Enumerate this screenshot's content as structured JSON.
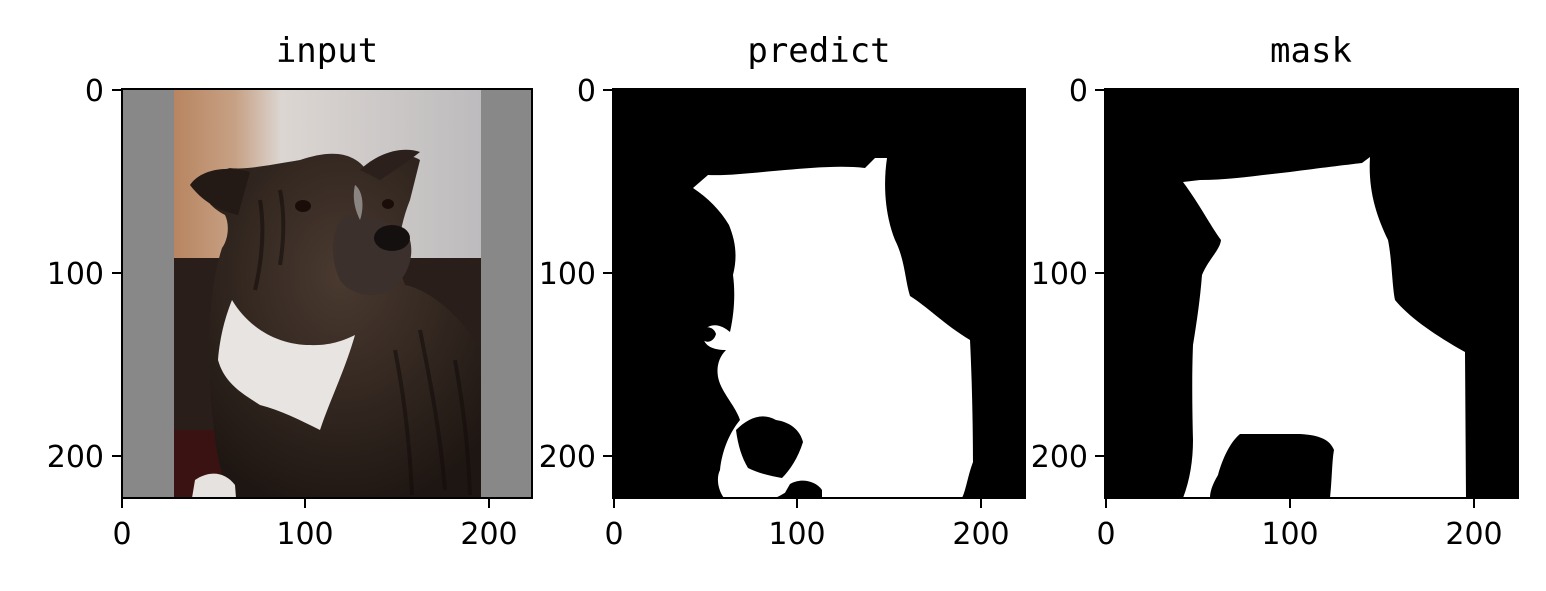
{
  "chart_data": [
    {
      "type": "image",
      "title": "input",
      "image": "photo-dog-staffordshire-brindle",
      "xlim": [
        0,
        224
      ],
      "ylim": [
        224,
        0
      ],
      "xticks": [
        0,
        100,
        200
      ],
      "yticks": [
        0,
        100,
        200
      ],
      "xtick_labels": [
        "0",
        "100",
        "200"
      ],
      "ytick_labels": [
        "0",
        "100",
        "200"
      ],
      "padding_color": "#888888"
    },
    {
      "type": "image",
      "title": "predict",
      "image": "binary-mask-predicted",
      "xlim": [
        0,
        224
      ],
      "ylim": [
        224,
        0
      ],
      "xticks": [
        0,
        100,
        200
      ],
      "yticks": [
        0,
        100,
        200
      ],
      "xtick_labels": [
        "0",
        "100",
        "200"
      ],
      "ytick_labels": [
        "0",
        "100",
        "200"
      ],
      "foreground_color": "#ffffff",
      "background_color": "#000000"
    },
    {
      "type": "image",
      "title": "mask",
      "image": "binary-mask-ground-truth",
      "xlim": [
        0,
        224
      ],
      "ylim": [
        224,
        0
      ],
      "xticks": [
        0,
        100,
        200
      ],
      "yticks": [
        0,
        100,
        200
      ],
      "xtick_labels": [
        "0",
        "100",
        "200"
      ],
      "ytick_labels": [
        "0",
        "100",
        "200"
      ],
      "foreground_color": "#ffffff",
      "background_color": "#000000"
    }
  ]
}
